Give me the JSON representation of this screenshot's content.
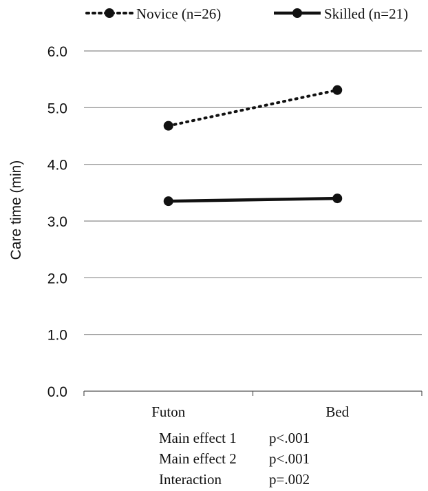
{
  "chart_data": {
    "type": "line",
    "categories": [
      "Futon",
      "Bed"
    ],
    "series": [
      {
        "name": "Novice (n=26)",
        "values": [
          4.68,
          5.31
        ],
        "line_style": "dotted",
        "color": "#111111"
      },
      {
        "name": "Skilled (n=21)",
        "values": [
          3.35,
          3.4
        ],
        "line_style": "solid",
        "color": "#111111"
      }
    ],
    "ylabel": "Care time (min)",
    "xlabel": "",
    "title": "",
    "ylim": [
      0,
      6
    ],
    "yticks": [
      "0.0",
      "1.0",
      "2.0",
      "3.0",
      "4.0",
      "5.0",
      "6.0"
    ],
    "grid": true,
    "legend_position": "top",
    "stats": [
      {
        "label": "Main effect 1",
        "value": "p<.001"
      },
      {
        "label": "Main effect 2",
        "value": "p<.001"
      },
      {
        "label": "Interaction",
        "value": "p=.002"
      }
    ]
  }
}
